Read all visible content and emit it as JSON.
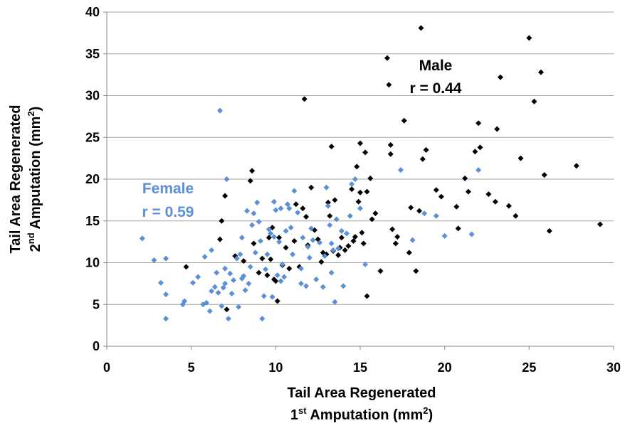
{
  "chart_data": {
    "type": "scatter",
    "xlim": [
      0,
      30
    ],
    "ylim": [
      0,
      40
    ],
    "x_ticks": [
      "0",
      "5",
      "10",
      "15",
      "20",
      "25",
      "30"
    ],
    "y_ticks": [
      "0",
      "5",
      "10",
      "15",
      "20",
      "25",
      "30",
      "35",
      "40"
    ],
    "grid": "horizontal",
    "xlabel_line1": "Tail Area Regenerated",
    "xlabel_line2_pre": "1",
    "xlabel_line2_sup": "st",
    "xlabel_line2_post": " Amputation (mm",
    "xlabel_line2_sup2": "2",
    "xlabel_line2_end": ")",
    "ylabel_line1": "Tail Area Regenerated",
    "ylabel_line2_pre": "2",
    "ylabel_line2_sup": "nd",
    "ylabel_line2_post": " Amputation (mm",
    "ylabel_line2_sup2": "2",
    "ylabel_line2_end": ")",
    "colors": {
      "male": "#000000",
      "female": "#5b8fd6"
    },
    "annotations": {
      "male_name": "Male",
      "male_r": "r = 0.44",
      "female_name": "Female",
      "female_r": "r = 0.59"
    },
    "series": [
      {
        "group": "male",
        "points": [
          [
            4.7,
            9.5
          ],
          [
            6.7,
            12.8
          ],
          [
            6.8,
            15
          ],
          [
            7,
            18
          ],
          [
            7.1,
            4.4
          ],
          [
            7.6,
            10.8
          ],
          [
            8.1,
            10.2
          ],
          [
            8.5,
            19.8
          ],
          [
            8.6,
            21
          ],
          [
            8.7,
            12.3
          ],
          [
            9,
            8.8
          ],
          [
            9.2,
            10.5
          ],
          [
            9.5,
            8.5
          ],
          [
            9.6,
            13
          ],
          [
            9.7,
            10.4
          ],
          [
            9.8,
            14.2
          ],
          [
            9.9,
            8
          ],
          [
            10,
            7.8
          ],
          [
            10.1,
            5.4
          ],
          [
            10.2,
            13
          ],
          [
            10.4,
            9.7
          ],
          [
            10.6,
            11.8
          ],
          [
            10.8,
            9.3
          ],
          [
            11.1,
            12.6
          ],
          [
            11.4,
            9.5
          ],
          [
            11.6,
            16.5
          ],
          [
            11.7,
            29.6
          ],
          [
            11.8,
            15.5
          ],
          [
            11.9,
            12.1
          ],
          [
            12.1,
            19
          ],
          [
            12.3,
            13.9
          ],
          [
            12.5,
            12.8
          ],
          [
            12.7,
            10.1
          ],
          [
            13,
            11
          ],
          [
            13.1,
            17.2
          ],
          [
            13.2,
            15.6
          ],
          [
            13.3,
            23.9
          ],
          [
            13.4,
            11.4
          ],
          [
            13.5,
            17.5
          ],
          [
            13.7,
            10.9
          ],
          [
            13.9,
            13
          ],
          [
            14.1,
            11.5
          ],
          [
            14.3,
            12
          ],
          [
            14.5,
            18.8
          ],
          [
            14.7,
            13.1
          ],
          [
            14.8,
            21.5
          ],
          [
            14.9,
            17.3
          ],
          [
            15,
            24.3
          ],
          [
            15,
            18.4
          ],
          [
            15.1,
            13.6
          ],
          [
            15.2,
            12.3
          ],
          [
            15.3,
            23.2
          ],
          [
            15.4,
            18.5
          ],
          [
            15.6,
            20.1
          ],
          [
            15.7,
            15.2
          ],
          [
            15.9,
            15.9
          ],
          [
            16.2,
            9
          ],
          [
            16.6,
            34.5
          ],
          [
            16.7,
            31.3
          ],
          [
            16.8,
            24.1
          ],
          [
            16.8,
            23
          ],
          [
            16.9,
            14
          ],
          [
            17.2,
            13.1
          ],
          [
            17.6,
            27
          ],
          [
            17.9,
            11.2
          ],
          [
            18,
            16.6
          ],
          [
            18.3,
            9
          ],
          [
            18.5,
            16.2
          ],
          [
            18.6,
            38.1
          ],
          [
            18.7,
            22.4
          ],
          [
            18.9,
            23.5
          ],
          [
            19.5,
            18.7
          ],
          [
            19.8,
            17.9
          ],
          [
            20.7,
            16.7
          ],
          [
            20.8,
            14.1
          ],
          [
            21.2,
            20.1
          ],
          [
            21.4,
            18.5
          ],
          [
            21.8,
            23.3
          ],
          [
            22,
            26.7
          ],
          [
            22.1,
            23.8
          ],
          [
            22.6,
            18.2
          ],
          [
            23,
            17.3
          ],
          [
            23.1,
            26
          ],
          [
            23.3,
            32.2
          ],
          [
            23.8,
            16.8
          ],
          [
            24.2,
            15.6
          ],
          [
            24.5,
            22.5
          ],
          [
            25,
            36.9
          ],
          [
            25.3,
            29.3
          ],
          [
            25.7,
            32.8
          ],
          [
            25.9,
            20.5
          ],
          [
            26.2,
            13.8
          ],
          [
            27.8,
            21.6
          ],
          [
            29.2,
            14.6
          ],
          [
            12.8,
            11.2
          ],
          [
            14.6,
            12.6
          ],
          [
            15.4,
            6
          ],
          [
            17.1,
            12.3
          ],
          [
            11.2,
            17
          ],
          [
            13.8,
            11.8
          ]
        ]
      },
      {
        "group": "female",
        "points": [
          [
            2.1,
            12.9
          ],
          [
            2.8,
            10.3
          ],
          [
            3.2,
            7.6
          ],
          [
            3.5,
            3.3
          ],
          [
            3.5,
            6.2
          ],
          [
            3.5,
            10.5
          ],
          [
            4.5,
            5
          ],
          [
            4.6,
            5.4
          ],
          [
            5.1,
            7.6
          ],
          [
            5.4,
            8.3
          ],
          [
            5.7,
            5
          ],
          [
            5.8,
            10.7
          ],
          [
            5.9,
            5.2
          ],
          [
            6.1,
            4.2
          ],
          [
            6.2,
            6.6
          ],
          [
            6.4,
            7.1
          ],
          [
            6.5,
            8.8
          ],
          [
            6.6,
            6.4
          ],
          [
            6.7,
            28.2
          ],
          [
            6.8,
            4.8
          ],
          [
            6.9,
            7
          ],
          [
            7,
            9.3
          ],
          [
            7.1,
            20
          ],
          [
            7.2,
            3.3
          ],
          [
            7.3,
            8.7
          ],
          [
            7.5,
            7.9
          ],
          [
            7.7,
            10.5
          ],
          [
            7.8,
            4.7
          ],
          [
            7.9,
            11
          ],
          [
            8,
            13
          ],
          [
            8.1,
            8.4
          ],
          [
            8.2,
            6.7
          ],
          [
            8.3,
            16.2
          ],
          [
            8.4,
            7.5
          ],
          [
            8.5,
            9.5
          ],
          [
            8.6,
            14.5
          ],
          [
            8.7,
            15.9
          ],
          [
            8.8,
            11.2
          ],
          [
            8.9,
            17.2
          ],
          [
            9,
            14.9
          ],
          [
            9.1,
            12.6
          ],
          [
            9.2,
            3.3
          ],
          [
            9.3,
            6
          ],
          [
            9.4,
            9.2
          ],
          [
            9.5,
            11
          ],
          [
            9.6,
            14
          ],
          [
            9.7,
            13.5
          ],
          [
            9.8,
            5.9
          ],
          [
            9.9,
            17.3
          ],
          [
            10,
            16.3
          ],
          [
            10.1,
            8.5
          ],
          [
            10.2,
            12.5
          ],
          [
            10.3,
            16.5
          ],
          [
            10.4,
            9.8
          ],
          [
            10.5,
            8.3
          ],
          [
            10.6,
            13.8
          ],
          [
            10.7,
            17
          ],
          [
            10.8,
            16.5
          ],
          [
            10.9,
            14.2
          ],
          [
            11,
            11
          ],
          [
            11.1,
            18.6
          ],
          [
            11.3,
            16
          ],
          [
            11.5,
            7.5
          ],
          [
            11.6,
            13
          ],
          [
            11.8,
            7.2
          ],
          [
            12,
            10.6
          ],
          [
            12.1,
            14.1
          ],
          [
            12.2,
            12.7
          ],
          [
            12.4,
            8
          ],
          [
            12.6,
            12.4
          ],
          [
            12.8,
            7.1
          ],
          [
            13,
            19
          ],
          [
            13.1,
            16.8
          ],
          [
            13.2,
            14.5
          ],
          [
            13.3,
            8.8
          ],
          [
            13.4,
            11.5
          ],
          [
            13.5,
            5.3
          ],
          [
            13.6,
            15.2
          ],
          [
            13.7,
            11.7
          ],
          [
            13.9,
            13.8
          ],
          [
            14,
            7.2
          ],
          [
            14.2,
            13.5
          ],
          [
            14.4,
            15.6
          ],
          [
            14.5,
            19.4
          ],
          [
            14.7,
            20
          ],
          [
            15,
            16.5
          ],
          [
            15.3,
            9.8
          ],
          [
            17.4,
            21.1
          ],
          [
            18.1,
            12.7
          ],
          [
            18.8,
            15.9
          ],
          [
            19.5,
            15.6
          ],
          [
            20,
            13.2
          ],
          [
            21.6,
            13.4
          ],
          [
            22,
            21.1
          ],
          [
            7,
            7.5
          ],
          [
            8,
            8.1
          ],
          [
            9.9,
            13.1
          ],
          [
            11.5,
            9.3
          ],
          [
            12.9,
            10.8
          ],
          [
            6.2,
            11.5
          ],
          [
            7.4,
            6.3
          ],
          [
            10.3,
            7.8
          ],
          [
            11.9,
            11.9
          ],
          [
            13.3,
            12.3
          ]
        ]
      }
    ]
  }
}
